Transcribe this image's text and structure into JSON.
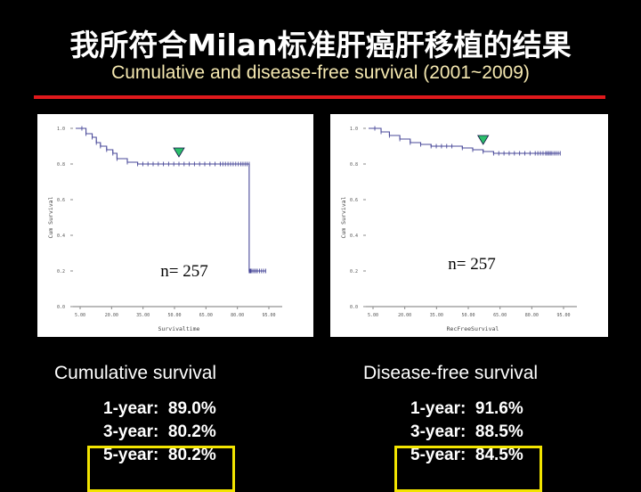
{
  "title": "我所符合Milan标准肝癌肝移植的结果",
  "subtitle": "Cumulative and disease-free survival  (2001~2009)",
  "colors": {
    "accent_line": "#e0191c",
    "highlight_box": "#f2e400",
    "curve": "#4a4a9a",
    "marker": "#2bbf6a"
  },
  "panels": [
    {
      "caption": "Cumulative survival",
      "stats": [
        "1-year:  89.0%",
        "3-year:  80.2%",
        "5-year:  80.2%"
      ]
    },
    {
      "caption": "Disease-free survival",
      "stats": [
        "1-year:  91.6%",
        "3-year:  88.5%",
        "5-year:  84.5%"
      ]
    }
  ],
  "chart_data": [
    {
      "type": "line",
      "ylabel": "Cum Survival",
      "xlabel": "Survivaltime",
      "annotation": "n= 257",
      "xlim": [
        0,
        100
      ],
      "ylim": [
        0,
        1.0
      ],
      "xticks": [
        "5.00",
        "20.00",
        "35.00",
        "50.00",
        "65.00",
        "80.00",
        "95.00"
      ],
      "yticks": [
        "0.0",
        "0.2",
        "0.4",
        "0.6",
        "0.8",
        "1.0"
      ],
      "series": [
        {
          "x": [
            0,
            3,
            5,
            8,
            10,
            12,
            15,
            18,
            20,
            25,
            30,
            40,
            50,
            60,
            70,
            75,
            80,
            84,
            84,
            85,
            88,
            92
          ],
          "y": [
            1.0,
            1.0,
            0.97,
            0.95,
            0.92,
            0.9,
            0.88,
            0.86,
            0.83,
            0.81,
            0.8,
            0.8,
            0.8,
            0.8,
            0.8,
            0.8,
            0.8,
            0.8,
            0.2,
            0.2,
            0.2,
            0.2
          ]
        }
      ],
      "marker_x": 50
    },
    {
      "type": "line",
      "ylabel": "Cum Survival",
      "xlabel": "RecFreeSurvival",
      "annotation": "n= 257",
      "xlim": [
        0,
        100
      ],
      "ylim": [
        0,
        1.0
      ],
      "xticks": [
        "5.00",
        "20.00",
        "35.00",
        "50.00",
        "65.00",
        "80.00",
        "95.00"
      ],
      "yticks": [
        "0.0",
        "0.2",
        "0.4",
        "0.6",
        "0.8",
        "1.0"
      ],
      "series": [
        {
          "x": [
            0,
            3,
            6,
            10,
            15,
            20,
            25,
            30,
            40,
            45,
            50,
            55,
            60,
            70,
            80,
            85,
            88,
            92
          ],
          "y": [
            1.0,
            1.0,
            0.98,
            0.96,
            0.94,
            0.92,
            0.91,
            0.9,
            0.9,
            0.89,
            0.88,
            0.87,
            0.86,
            0.86,
            0.86,
            0.86,
            0.86,
            0.86
          ]
        }
      ],
      "marker_x": 55
    }
  ]
}
